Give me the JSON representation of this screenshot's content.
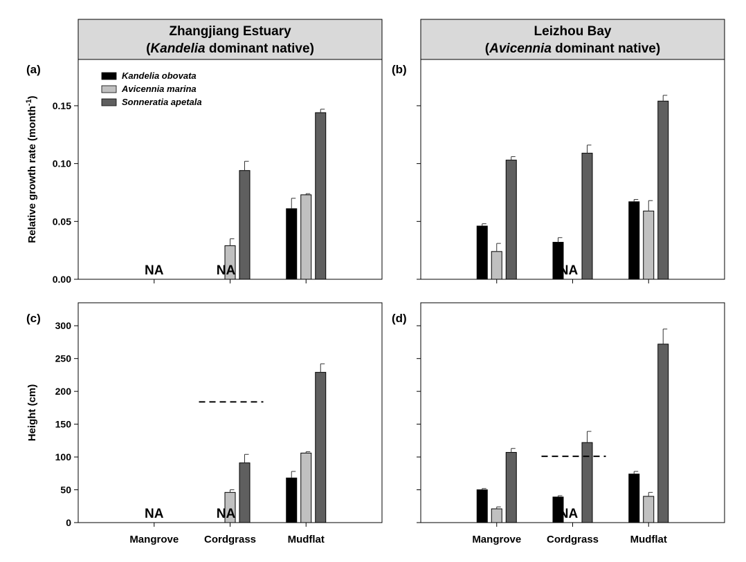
{
  "headers": [
    {
      "line1": "Zhangjiang Estuary",
      "line2_open": "(",
      "line2_italic": "Kandelia",
      "line2_rest": " dominant native)"
    },
    {
      "line1": "Leizhou Bay",
      "line2_open": "(",
      "line2_italic": "Avicennia",
      "line2_rest": " dominant native)"
    }
  ],
  "na_label": "NA",
  "colors": {
    "kandelia": "#000000",
    "avicennia": "#c0c0c0",
    "sonneratia": "#5f5f5f",
    "header_bg": "#d9d9d9"
  },
  "legend": [
    "Kandelia obovata",
    "Avicennia marina",
    "Sonneratia apetala"
  ],
  "chart_data": [
    {
      "type": "bar",
      "panel": "(a)",
      "site": "Zhangjiang Estuary",
      "ylabel": "Relative growth rate (month",
      "ylabel_sup": "-1",
      "ylabel_close": ")",
      "ylim": [
        0,
        0.19
      ],
      "yticks": [
        0.0,
        0.05,
        0.1,
        0.15
      ],
      "ytick_labels": [
        "0.00",
        "0.05",
        "0.10",
        "0.15"
      ],
      "categories": [
        "Mangrove",
        "Cordgrass",
        "Mudflat"
      ],
      "series": [
        {
          "name": "Kandelia obovata",
          "values": [
            null,
            null,
            0.061
          ],
          "errors": [
            null,
            null,
            0.009
          ]
        },
        {
          "name": "Avicennia marina",
          "values": [
            null,
            0.029,
            0.073
          ],
          "errors": [
            null,
            0.006,
            0.001
          ]
        },
        {
          "name": "Sonneratia apetala",
          "values": [
            null,
            0.094,
            0.144
          ],
          "errors": [
            null,
            0.008,
            0.003
          ]
        }
      ],
      "na": [
        "Mangrove",
        "Cordgrass"
      ],
      "reference_line": null
    },
    {
      "type": "bar",
      "panel": "(b)",
      "site": "Leizhou Bay",
      "ylim": [
        0,
        0.19
      ],
      "yticks": [
        0.0,
        0.05,
        0.1,
        0.15
      ],
      "categories": [
        "Mangrove",
        "Cordgrass",
        "Mudflat"
      ],
      "series": [
        {
          "name": "Kandelia obovata",
          "values": [
            0.046,
            0.032,
            0.067
          ],
          "errors": [
            0.002,
            0.004,
            0.002
          ]
        },
        {
          "name": "Avicennia marina",
          "values": [
            0.024,
            null,
            0.059
          ],
          "errors": [
            0.007,
            null,
            0.009
          ]
        },
        {
          "name": "Sonneratia apetala",
          "values": [
            0.103,
            0.109,
            0.154
          ],
          "errors": [
            0.003,
            0.007,
            0.005
          ]
        }
      ],
      "na": [
        "Cordgrass"
      ],
      "reference_line": null
    },
    {
      "type": "bar",
      "panel": "(c)",
      "site": "Zhangjiang Estuary",
      "ylabel": "Height (cm)",
      "ylim": [
        0,
        335
      ],
      "yticks": [
        0,
        50,
        100,
        150,
        200,
        250,
        300
      ],
      "ytick_labels": [
        "0",
        "50",
        "100",
        "150",
        "200",
        "250",
        "300"
      ],
      "categories": [
        "Mangrove",
        "Cordgrass",
        "Mudflat"
      ],
      "series": [
        {
          "name": "Kandelia obovata",
          "values": [
            null,
            null,
            68
          ],
          "errors": [
            null,
            null,
            10
          ]
        },
        {
          "name": "Avicennia marina",
          "values": [
            null,
            46,
            106
          ],
          "errors": [
            null,
            4,
            2
          ]
        },
        {
          "name": "Sonneratia apetala",
          "values": [
            null,
            91,
            229
          ],
          "errors": [
            null,
            13,
            13
          ]
        }
      ],
      "na": [
        "Mangrove",
        "Cordgrass"
      ],
      "reference_line": {
        "category": "Cordgrass",
        "value": 184,
        "style": "dashed"
      }
    },
    {
      "type": "bar",
      "panel": "(d)",
      "site": "Leizhou Bay",
      "ylim": [
        0,
        335
      ],
      "yticks": [
        0,
        50,
        100,
        150,
        200,
        250,
        300
      ],
      "categories": [
        "Mangrove",
        "Cordgrass",
        "Mudflat"
      ],
      "series": [
        {
          "name": "Kandelia obovata",
          "values": [
            50,
            39,
            74
          ],
          "errors": [
            2,
            2,
            4
          ]
        },
        {
          "name": "Avicennia marina",
          "values": [
            21,
            null,
            40
          ],
          "errors": [
            3,
            null,
            6
          ]
        },
        {
          "name": "Sonneratia apetala",
          "values": [
            107,
            122,
            272
          ],
          "errors": [
            6,
            17,
            23
          ]
        }
      ],
      "na": [
        "Cordgrass"
      ],
      "reference_line": {
        "category": "Cordgrass",
        "value": 101,
        "style": "dashed"
      }
    }
  ]
}
